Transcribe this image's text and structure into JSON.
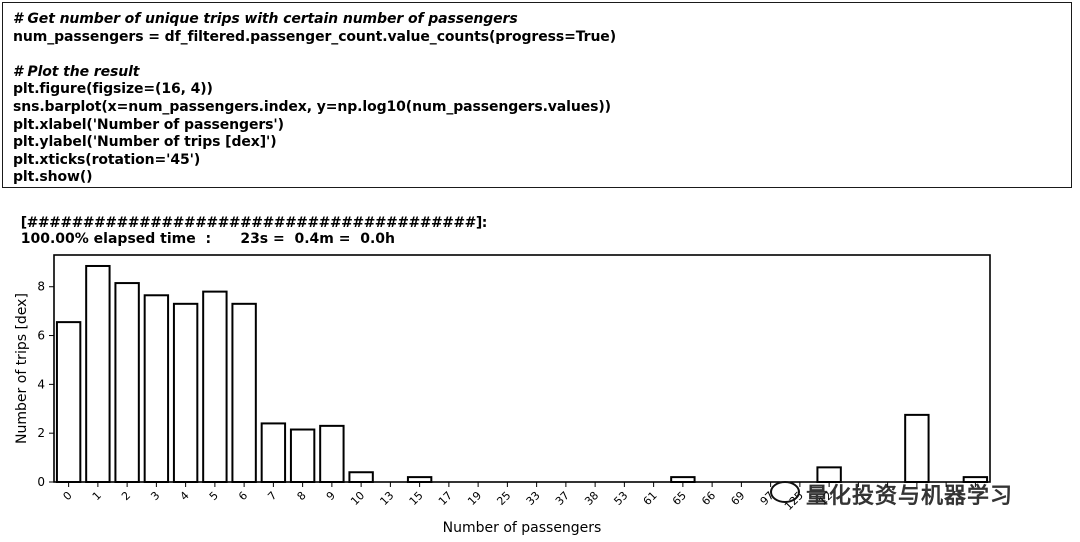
{
  "cell": {
    "lines": [
      {
        "text": "# Get number of unique trips with certain number of passengers",
        "kind": "comment"
      },
      {
        "text": "num_passengers = df_filtered.passenger_count.value_counts(progress=True)",
        "kind": "code"
      },
      {
        "text": "",
        "kind": "blank"
      },
      {
        "text": "# Plot the result",
        "kind": "comment"
      },
      {
        "text": "plt.figure(figsize=(16, 4))",
        "kind": "code"
      },
      {
        "text": "sns.barplot(x=num_passengers.index, y=np.log10(num_passengers.values))",
        "kind": "code"
      },
      {
        "text": "plt.xlabel('Number of passengers')",
        "kind": "code"
      },
      {
        "text": "plt.ylabel('Number of trips [dex]')",
        "kind": "code"
      },
      {
        "text": "plt.xticks(rotation='45')",
        "kind": "code"
      },
      {
        "text": "plt.show()",
        "kind": "code"
      }
    ]
  },
  "progress": {
    "bar": "[########################################]:",
    "text": "100.00% elapsed time  :      23s =  0.4m =  0.0h"
  },
  "watermark": {
    "text": "量化投资与机器学习"
  },
  "chart_data": {
    "type": "bar",
    "xlabel": "Number of passengers",
    "ylabel": "Number of trips [dex]",
    "ylim": [
      0,
      9.3
    ],
    "yticks": [
      0,
      2,
      4,
      6,
      8
    ],
    "tick_rotation": 45,
    "grid": false,
    "categories": [
      "0",
      "1",
      "2",
      "3",
      "4",
      "5",
      "6",
      "7",
      "8",
      "9",
      "10",
      "13",
      "15",
      "17",
      "19",
      "25",
      "33",
      "37",
      "38",
      "53",
      "61",
      "65",
      "66",
      "69",
      "97",
      "125",
      "128",
      "",
      "",
      "",
      "",
      ""
    ],
    "visible_tick_labels": [
      "0",
      "1",
      "2",
      "3",
      "4",
      "5",
      "6",
      "7",
      "8",
      "9",
      "10",
      "13",
      "15",
      "17",
      "19",
      "25",
      "33",
      "37",
      "38",
      "53",
      "61",
      "65",
      "66",
      "69",
      "97",
      "125",
      "12",
      "",
      "",
      "",
      "",
      ""
    ],
    "values": [
      6.55,
      8.85,
      8.15,
      7.65,
      7.3,
      7.8,
      7.3,
      2.4,
      2.15,
      2.3,
      0.4,
      0.0,
      0.2,
      0.0,
      0.0,
      0.0,
      0.0,
      0.0,
      0.0,
      0.0,
      0.0,
      0.2,
      0.0,
      0.0,
      0.0,
      0.0,
      0.6,
      0.0,
      0.0,
      2.75,
      0.0,
      0.2
    ]
  }
}
